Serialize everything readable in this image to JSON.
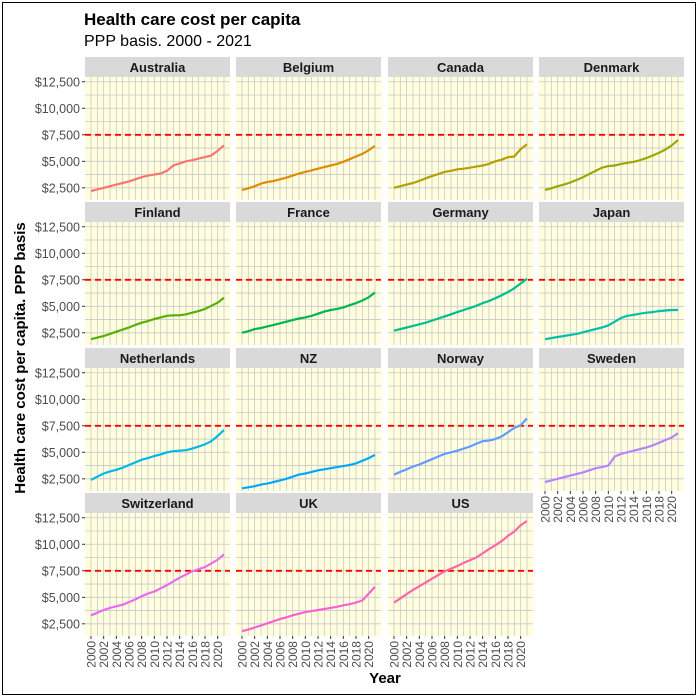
{
  "chart_data": {
    "type": "line",
    "title": "Health care cost per capita",
    "subtitle": "PPP basis. 2000 - 2021",
    "xlabel": "Year",
    "ylabel": "Health care cost per capita. PPP basis",
    "xlim": [
      2000,
      2021
    ],
    "ylim": [
      1500,
      12500
    ],
    "x_ticks": [
      "2000",
      "2002",
      "2004",
      "2006",
      "2008",
      "2010",
      "2012",
      "2014",
      "2016",
      "2018",
      "2020"
    ],
    "y_ticks": [
      "$2,500",
      "$5,000",
      "$7,500",
      "$10,000",
      "$12,500"
    ],
    "y_tick_values": [
      2500,
      5000,
      7500,
      10000,
      12500
    ],
    "reference_line": {
      "value": 7500,
      "color": "#ff0000",
      "style": "dashed"
    },
    "panel_background": "#ffffe0",
    "strip_background": "#d9d9d9",
    "grid": true,
    "layout": "facet-wrap 4 columns",
    "x": [
      2000,
      2001,
      2002,
      2003,
      2004,
      2005,
      2006,
      2007,
      2008,
      2009,
      2010,
      2011,
      2012,
      2013,
      2014,
      2015,
      2016,
      2017,
      2018,
      2019,
      2020,
      2021
    ],
    "series": [
      {
        "name": "Australia",
        "color": "#f8766d",
        "values": [
          2200,
          2350,
          2500,
          2650,
          2800,
          2950,
          3100,
          3300,
          3500,
          3650,
          3750,
          3850,
          4100,
          4600,
          4800,
          5000,
          5100,
          5250,
          5400,
          5550,
          6000,
          6500
        ]
      },
      {
        "name": "Belgium",
        "color": "#de8c00",
        "values": [
          2300,
          2450,
          2650,
          2900,
          3050,
          3150,
          3300,
          3450,
          3650,
          3850,
          4000,
          4150,
          4300,
          4450,
          4600,
          4750,
          4950,
          5200,
          5450,
          5700,
          6050,
          6450
        ]
      },
      {
        "name": "Canada",
        "color": "#b79f00",
        "values": [
          2500,
          2650,
          2800,
          2950,
          3150,
          3400,
          3600,
          3800,
          4000,
          4100,
          4250,
          4300,
          4400,
          4500,
          4600,
          4750,
          5000,
          5150,
          5400,
          5450,
          6150,
          6600
        ]
      },
      {
        "name": "Denmark",
        "color": "#9da700",
        "values": [
          2300,
          2450,
          2650,
          2800,
          3000,
          3250,
          3500,
          3800,
          4100,
          4400,
          4550,
          4600,
          4750,
          4850,
          4950,
          5100,
          5300,
          5550,
          5800,
          6100,
          6500,
          7000
        ]
      },
      {
        "name": "Finland",
        "color": "#56b000",
        "values": [
          1900,
          2050,
          2200,
          2400,
          2600,
          2800,
          3000,
          3250,
          3450,
          3600,
          3800,
          3950,
          4100,
          4150,
          4150,
          4250,
          4400,
          4550,
          4750,
          5050,
          5350,
          5800
        ]
      },
      {
        "name": "France",
        "color": "#00b54b",
        "values": [
          2500,
          2650,
          2850,
          2950,
          3100,
          3250,
          3400,
          3550,
          3700,
          3850,
          3950,
          4100,
          4300,
          4500,
          4650,
          4750,
          4900,
          5100,
          5300,
          5550,
          5850,
          6300
        ]
      },
      {
        "name": "Germany",
        "color": "#00bd8d",
        "values": [
          2700,
          2850,
          3000,
          3150,
          3300,
          3450,
          3650,
          3850,
          4050,
          4250,
          4450,
          4650,
          4850,
          5050,
          5300,
          5500,
          5750,
          6050,
          6350,
          6700,
          7150,
          7600
        ]
      },
      {
        "name": "Japan",
        "color": "#00bfaa",
        "values": [
          1900,
          2000,
          2100,
          2200,
          2300,
          2400,
          2550,
          2700,
          2850,
          3000,
          3200,
          3550,
          3900,
          4100,
          4200,
          4300,
          4400,
          4450,
          4550,
          4600,
          4650,
          4650
        ]
      },
      {
        "name": "Netherlands",
        "color": "#00b8e5",
        "values": [
          2400,
          2700,
          3000,
          3200,
          3350,
          3550,
          3800,
          4050,
          4300,
          4450,
          4650,
          4800,
          5000,
          5100,
          5150,
          5200,
          5350,
          5550,
          5750,
          6050,
          6550,
          7100
        ]
      },
      {
        "name": "NZ",
        "color": "#00a9ff",
        "values": [
          1600,
          1700,
          1800,
          1950,
          2050,
          2200,
          2350,
          2500,
          2700,
          2900,
          3000,
          3150,
          3300,
          3400,
          3500,
          3600,
          3700,
          3800,
          3950,
          4200,
          4450,
          4750
        ]
      },
      {
        "name": "Norway",
        "color": "#619cff",
        "values": [
          2900,
          3150,
          3400,
          3650,
          3850,
          4100,
          4350,
          4600,
          4850,
          5000,
          5150,
          5350,
          5550,
          5800,
          6050,
          6100,
          6250,
          6500,
          6900,
          7300,
          7550,
          8200
        ]
      },
      {
        "name": "Sweden",
        "color": "#b983ff",
        "values": [
          2200,
          2350,
          2500,
          2650,
          2800,
          2950,
          3100,
          3300,
          3500,
          3600,
          3750,
          4600,
          4850,
          5000,
          5150,
          5300,
          5450,
          5650,
          5900,
          6150,
          6400,
          6800
        ]
      },
      {
        "name": "Switzerland",
        "color": "#e76bf3",
        "values": [
          3300,
          3550,
          3800,
          4000,
          4150,
          4300,
          4550,
          4800,
          5100,
          5350,
          5550,
          5850,
          6150,
          6500,
          6850,
          7150,
          7450,
          7650,
          7850,
          8200,
          8550,
          9050
        ]
      },
      {
        "name": "UK",
        "color": "#fd61d1",
        "values": [
          1800,
          1950,
          2150,
          2350,
          2550,
          2750,
          2950,
          3100,
          3300,
          3450,
          3600,
          3700,
          3800,
          3900,
          4000,
          4100,
          4250,
          4350,
          4500,
          4700,
          5350,
          6000
        ]
      },
      {
        "name": "US",
        "color": "#ff67a4",
        "values": [
          4500,
          4900,
          5300,
          5700,
          6050,
          6400,
          6750,
          7100,
          7450,
          7700,
          7950,
          8250,
          8500,
          8750,
          9150,
          9550,
          9900,
          10300,
          10800,
          11200,
          11800,
          12200
        ]
      }
    ]
  }
}
